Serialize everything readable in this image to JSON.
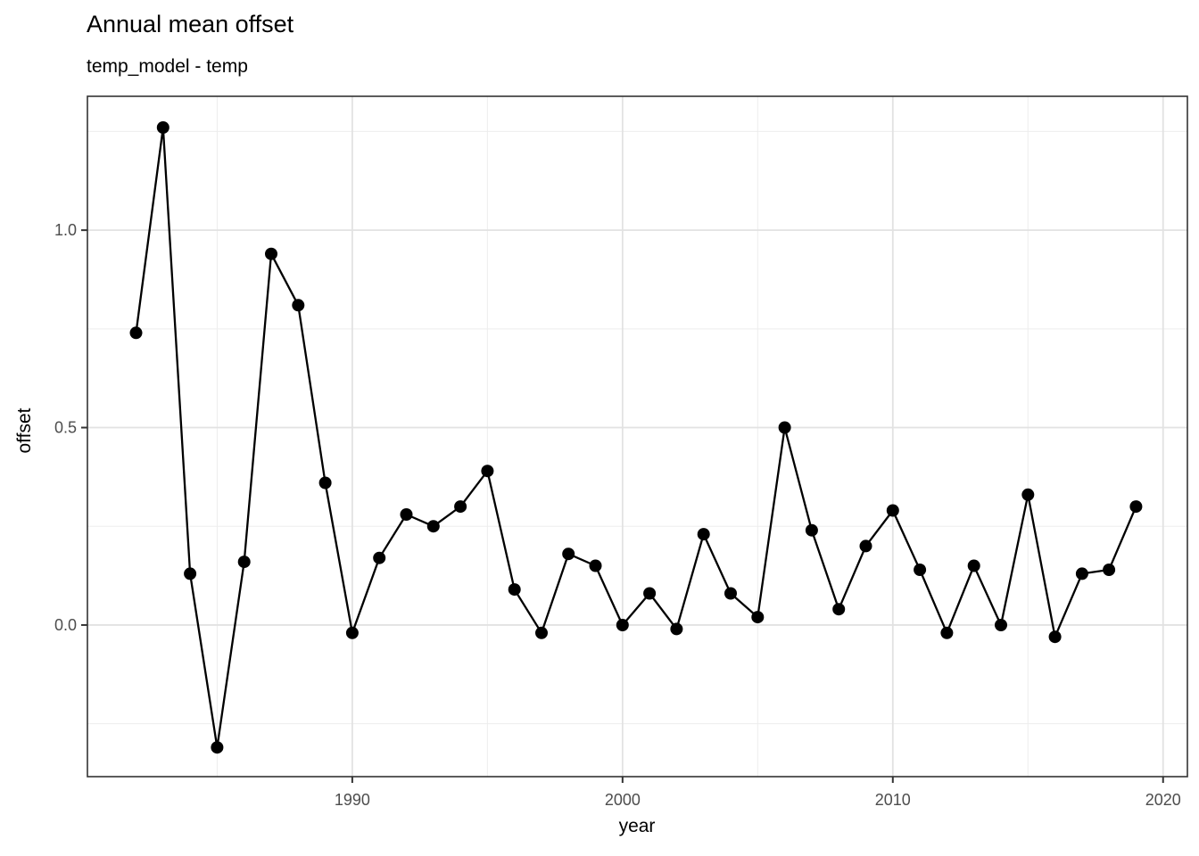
{
  "chart_data": {
    "type": "line",
    "title": "Annual mean offset",
    "subtitle": "temp_model - temp",
    "xlabel": "year",
    "ylabel": "offset",
    "years": [
      1982,
      1983,
      1984,
      1985,
      1986,
      1987,
      1988,
      1989,
      1990,
      1991,
      1992,
      1993,
      1994,
      1995,
      1996,
      1997,
      1998,
      1999,
      2000,
      2001,
      2002,
      2003,
      2004,
      2005,
      2006,
      2007,
      2008,
      2009,
      2010,
      2011,
      2012,
      2013,
      2014,
      2015,
      2016,
      2017,
      2018,
      2019
    ],
    "values": [
      0.74,
      1.26,
      0.13,
      -0.31,
      0.16,
      0.94,
      0.81,
      0.36,
      -0.02,
      0.17,
      0.28,
      0.25,
      0.3,
      0.39,
      0.09,
      -0.02,
      0.18,
      0.15,
      0.0,
      0.08,
      -0.01,
      0.23,
      0.08,
      0.02,
      0.5,
      0.24,
      0.04,
      0.2,
      0.29,
      0.14,
      -0.02,
      0.15,
      0.0,
      0.33,
      -0.03,
      0.13,
      0.14,
      0.3
    ],
    "x_major_ticks": [
      1990,
      2000,
      2010,
      2020
    ],
    "x_major_labels": [
      "1990",
      "2000",
      "2010",
      "2020"
    ],
    "x_minor_ticks": [
      1985,
      1995,
      2005,
      2015
    ],
    "y_major_ticks": [
      0.0,
      0.5,
      1.0
    ],
    "y_major_labels": [
      "0.0",
      "0.5",
      "1.0"
    ],
    "y_minor_ticks": [
      -0.25,
      0.25,
      0.75,
      1.25
    ],
    "xlim": [
      1980.2,
      2020.9
    ],
    "ylim": [
      -0.384,
      1.339
    ],
    "grid": "major and minor, light gray on white panel",
    "legend": "none",
    "colors": {
      "series": "#000000",
      "panel_border": "#333333",
      "axis_tick": "#333333",
      "grid_major": "#E2E2E2",
      "grid_minor": "#EDEDED",
      "tick_label": "#4D4D4D",
      "text": "#000000",
      "background": "#FFFFFF"
    }
  }
}
